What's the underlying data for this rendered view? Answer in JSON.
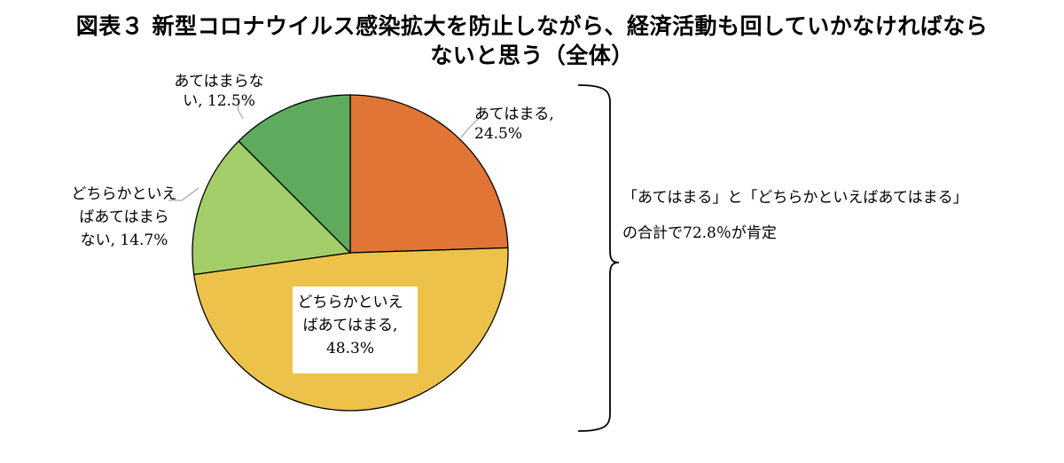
{
  "title": {
    "line1": "図表３ 新型コロナウイルス感染拡大を防止しながら、経済活動も回していかなければなら",
    "line2": "ないと思う（全体）"
  },
  "chart_data": {
    "type": "pie",
    "slices": [
      {
        "label": "あてはまる",
        "value": 24.5,
        "color": "#E07535",
        "label_lines": [
          "あてはまる,",
          "24.5%"
        ]
      },
      {
        "label": "どちらかといえばあてはまる",
        "value": 48.3,
        "color": "#EDC24A",
        "label_lines": [
          "どちらかといえ",
          "ばあてはまる,",
          "48.3%"
        ]
      },
      {
        "label": "どちらかといえばあてはまらない",
        "value": 14.7,
        "color": "#A3CD68",
        "label_lines": [
          "どちらかといえ",
          "ばあてはまら",
          "ない, 14.7%"
        ]
      },
      {
        "label": "あてはまらない",
        "value": 12.5,
        "color": "#5FAB5E",
        "label_lines": [
          "あてはまらな",
          "い, 12.5%"
        ]
      }
    ],
    "start": "top",
    "direction": "clockwise"
  },
  "annotation": {
    "line1": "「あてはまる」と「どちらかといえばあてはまる」",
    "line2": "の合計で72.8％が肯定"
  }
}
